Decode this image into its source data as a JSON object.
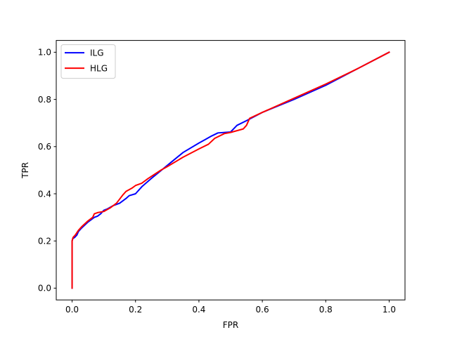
{
  "chart_data": {
    "type": "line",
    "title": "",
    "xlabel": "FPR",
    "ylabel": "TPR",
    "xlim": [
      -0.05,
      1.05
    ],
    "ylim": [
      -0.05,
      1.05
    ],
    "xticks": [
      0.0,
      0.2,
      0.4,
      0.6,
      0.8,
      1.0
    ],
    "yticks": [
      0.0,
      0.2,
      0.4,
      0.6,
      0.8,
      1.0
    ],
    "xtick_labels": [
      "0.0",
      "0.2",
      "0.4",
      "0.6",
      "0.8",
      "1.0"
    ],
    "ytick_labels": [
      "0.0",
      "0.2",
      "0.4",
      "0.6",
      "0.8",
      "1.0"
    ],
    "grid": false,
    "legend_position": "top-left",
    "series": [
      {
        "name": "ILG",
        "color": "#0000ff",
        "x": [
          0.0,
          0.0,
          0.0,
          0.002,
          0.008,
          0.015,
          0.02,
          0.03,
          0.05,
          0.07,
          0.08,
          0.09,
          0.1,
          0.11,
          0.13,
          0.15,
          0.17,
          0.18,
          0.2,
          0.22,
          0.25,
          0.3,
          0.35,
          0.4,
          0.42,
          0.44,
          0.46,
          0.5,
          0.52,
          0.55,
          0.6,
          0.7,
          0.8,
          0.9,
          1.0
        ],
        "y": [
          0.0,
          0.1,
          0.2,
          0.21,
          0.215,
          0.225,
          0.24,
          0.255,
          0.28,
          0.3,
          0.305,
          0.315,
          0.33,
          0.335,
          0.35,
          0.36,
          0.38,
          0.392,
          0.4,
          0.43,
          0.465,
          0.52,
          0.575,
          0.615,
          0.63,
          0.645,
          0.658,
          0.662,
          0.69,
          0.71,
          0.745,
          0.8,
          0.86,
          0.93,
          1.0
        ]
      },
      {
        "name": "HLG",
        "color": "#ff0000",
        "x": [
          0.0,
          0.0,
          0.0,
          0.003,
          0.01,
          0.02,
          0.03,
          0.05,
          0.065,
          0.07,
          0.08,
          0.1,
          0.12,
          0.14,
          0.16,
          0.17,
          0.19,
          0.2,
          0.22,
          0.24,
          0.28,
          0.3,
          0.35,
          0.4,
          0.43,
          0.45,
          0.48,
          0.5,
          0.54,
          0.55,
          0.56,
          0.6,
          0.7,
          0.8,
          0.9,
          1.0
        ],
        "y": [
          0.0,
          0.1,
          0.2,
          0.215,
          0.225,
          0.245,
          0.26,
          0.285,
          0.3,
          0.315,
          0.32,
          0.325,
          0.34,
          0.36,
          0.395,
          0.41,
          0.425,
          0.435,
          0.445,
          0.465,
          0.5,
          0.515,
          0.555,
          0.59,
          0.61,
          0.635,
          0.655,
          0.66,
          0.675,
          0.69,
          0.72,
          0.745,
          0.805,
          0.865,
          0.93,
          1.0
        ]
      }
    ]
  }
}
